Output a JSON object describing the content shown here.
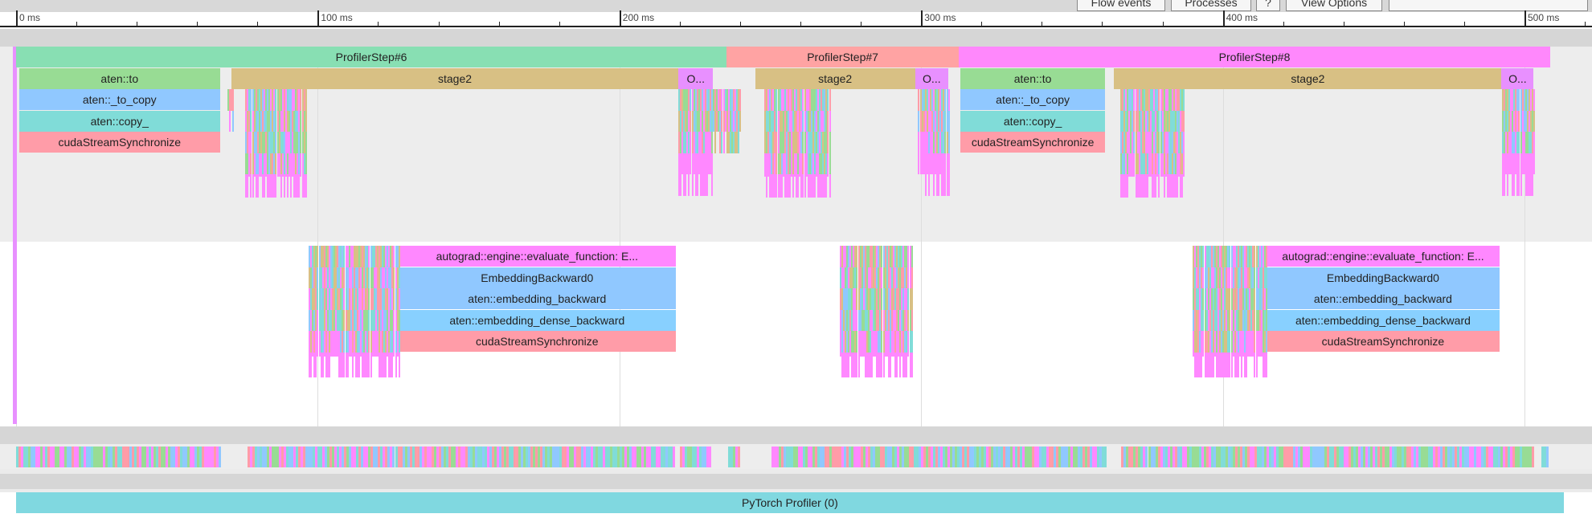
{
  "toolbar": {
    "buttons": [
      "Flow events",
      "Processes",
      "?",
      "View Options"
    ]
  },
  "ruler": {
    "labels": [
      "0 ms",
      "100 ms",
      "200 ms",
      "300 ms",
      "400 ms",
      "500 ms"
    ],
    "ms_per_major": 100
  },
  "colors": {
    "step6": "#88dfb3",
    "step7": "#ffa3a3",
    "step8": "#ff88fc",
    "stage2": "#d8c084",
    "to": "#98dc94",
    "to_copy": "#90c8ff",
    "copy": "#80dcd8",
    "sync": "#ff9ca8",
    "autograd": "#ff88ff",
    "embed": "#90c8ff",
    "dense": "#88d0ff",
    "other": "#e890ff",
    "profiler": "#80d8e0"
  },
  "events": [
    {
      "label": "ProfilerStep#6",
      "row": 0,
      "start": 0,
      "end": 235.5,
      "color": "step6"
    },
    {
      "label": "ProfilerStep#7",
      "row": 0,
      "start": 235.5,
      "end": 312.5,
      "color": "step7"
    },
    {
      "label": "ProfilerStep#8",
      "row": 0,
      "start": 312.5,
      "end": 508.5,
      "color": "step8"
    },
    {
      "label": "aten::to",
      "row": 1,
      "start": 1,
      "end": 67.6,
      "color": "to"
    },
    {
      "label": "stage2",
      "row": 1,
      "start": 71.3,
      "end": 219.6,
      "color": "stage2"
    },
    {
      "label": "O...",
      "row": 1,
      "start": 219.6,
      "end": 231,
      "color": "other"
    },
    {
      "label": "stage2",
      "row": 1,
      "start": 245,
      "end": 298,
      "color": "stage2"
    },
    {
      "label": "O...",
      "row": 1,
      "start": 298,
      "end": 309,
      "color": "other"
    },
    {
      "label": "aten::to",
      "row": 1,
      "start": 313,
      "end": 361,
      "color": "to"
    },
    {
      "label": "stage2",
      "row": 1,
      "start": 364,
      "end": 492.4,
      "color": "stage2"
    },
    {
      "label": "O...",
      "row": 1,
      "start": 492.4,
      "end": 503,
      "color": "other"
    },
    {
      "label": "aten::_to_copy",
      "row": 2,
      "start": 1,
      "end": 67.6,
      "color": "to_copy"
    },
    {
      "label": "aten::copy_",
      "row": 3,
      "start": 1,
      "end": 67.6,
      "color": "copy"
    },
    {
      "label": "cudaStreamSynchronize",
      "row": 4,
      "start": 1,
      "end": 67.6,
      "color": "sync"
    },
    {
      "label": "aten::_to_copy",
      "row": 2,
      "start": 313,
      "end": 361,
      "color": "to_copy"
    },
    {
      "label": "aten::copy_",
      "row": 3,
      "start": 313,
      "end": 361,
      "color": "copy"
    },
    {
      "label": "cudaStreamSynchronize",
      "row": 4,
      "start": 313,
      "end": 361,
      "color": "sync"
    },
    {
      "label": "autograd::engine::evaluate_function: E...",
      "row": 9,
      "start": 126.8,
      "end": 218.6,
      "color": "autograd"
    },
    {
      "label": "EmbeddingBackward0",
      "row": 10,
      "start": 126.8,
      "end": 218.6,
      "color": "embed"
    },
    {
      "label": "aten::embedding_backward",
      "row": 11,
      "start": 126.8,
      "end": 218.6,
      "color": "embed"
    },
    {
      "label": "aten::embedding_dense_backward",
      "row": 12,
      "start": 126.8,
      "end": 218.6,
      "color": "dense"
    },
    {
      "label": "cudaStreamSynchronize",
      "row": 13,
      "start": 126.8,
      "end": 218.6,
      "color": "sync"
    },
    {
      "label": "autograd::engine::evaluate_function: E...",
      "row": 9,
      "start": 414.4,
      "end": 491.8,
      "color": "autograd"
    },
    {
      "label": "EmbeddingBackward0",
      "row": 10,
      "start": 414.4,
      "end": 491.8,
      "color": "embed"
    },
    {
      "label": "aten::embedding_backward",
      "row": 11,
      "start": 414.4,
      "end": 491.8,
      "color": "embed"
    },
    {
      "label": "aten::embedding_dense_backward",
      "row": 12,
      "start": 414.4,
      "end": 491.8,
      "color": "dense"
    },
    {
      "label": "cudaStreamSynchronize",
      "row": 13,
      "start": 414.4,
      "end": 491.8,
      "color": "sync"
    }
  ],
  "profiler_track": {
    "label": "PyTorch Profiler (0)",
    "start": 0,
    "end": 513
  }
}
